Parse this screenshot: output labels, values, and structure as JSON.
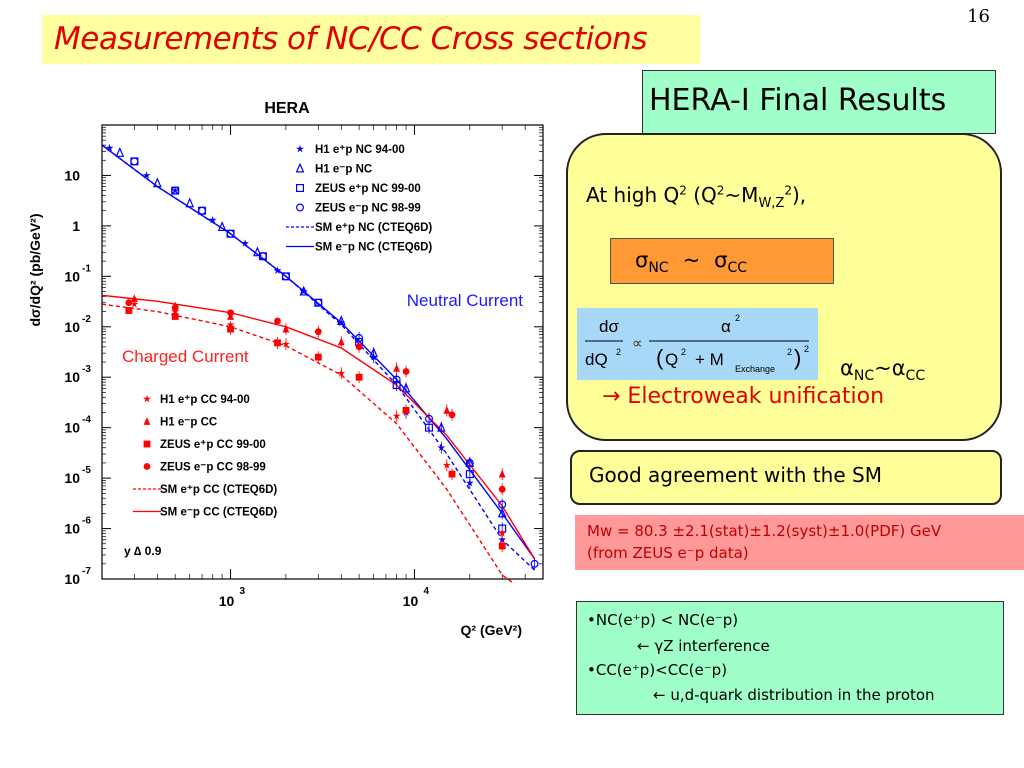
{
  "page_number": "16",
  "slide_title": "Measurements of NC/CC Cross sections",
  "hera_box": "HERA-I  Final Results",
  "highq": {
    "prefix": "At high Q",
    "sup1": "2",
    "mid": "  (Q",
    "sup2": "2",
    "tilde": "~M",
    "sub": "W,Z",
    "sup3": "2",
    "end": "),"
  },
  "sigma_eq": {
    "s1": "σ",
    "sub1": "NC",
    "tilde": "~",
    "s2": "σ",
    "sub2": "CC"
  },
  "formula": {
    "num_left": "dσ",
    "den_left": "dQ",
    "den_left_sup": "2",
    "prop": "∝",
    "num_right": "α",
    "num_right_sup": "2",
    "den_right_q": "Q",
    "den_right_q_sup": "2",
    "plus": "+ M",
    "m_sub": "Exchange",
    "m_sup": "2",
    "outer_sup": "2"
  },
  "alpha_eq": {
    "a1": "α",
    "sub1": "NC",
    "tilde": "~",
    "a2": "α",
    "sub2": "CC"
  },
  "electroweak": "→ Electroweak unification",
  "good_agreement": "Good agreement with the SM",
  "mw_line1": "Mw = 80.3 ±2.1(stat)±1.2(syst)±1.0(PDF) GeV",
  "mw_line2": "(from ZEUS e⁻p data)",
  "bullets": [
    "•NC(e⁺p) < NC(e⁻p)",
    "← γZ interference",
    "•CC(e⁺p)<CC(e⁻p)",
    "← u,d-quark distribution in the proton"
  ],
  "colors": {
    "nc": "#0000ff",
    "cc": "#ff0000",
    "title_red": "#e00000"
  },
  "chart_data": {
    "type": "scatter",
    "title": "HERA",
    "ylabel": "dσ/dQ² (pb/GeV²)",
    "xlabel": "Q² (GeV²)",
    "x_scale": "log",
    "y_scale": "log",
    "xlim": [
      200,
      50000
    ],
    "ylim": [
      1e-07,
      100
    ],
    "x_ticks": [
      {
        "label": "10",
        "sup": "3"
      },
      {
        "label": "10",
        "sup": "4"
      }
    ],
    "y_ticks": [
      {
        "label": "10",
        "sup": ""
      },
      {
        "label": "1",
        "sup": ""
      },
      {
        "label": "10",
        "sup": "-1"
      },
      {
        "label": "10",
        "sup": "-2"
      },
      {
        "label": "10",
        "sup": "-3"
      },
      {
        "label": "10",
        "sup": "-4"
      },
      {
        "label": "10",
        "sup": "-5"
      },
      {
        "label": "10",
        "sup": "-6"
      },
      {
        "label": "10",
        "sup": "-7"
      }
    ],
    "region_labels": {
      "nc": "Neutral Current",
      "cc": "Charged Current"
    },
    "y_cut": "y ∆ 0.9",
    "nc_legend": [
      {
        "label": "H1 e⁺p NC 94-00",
        "marker": "star"
      },
      {
        "label": "H1 e⁻p NC",
        "marker": "tri-open"
      },
      {
        "label": "ZEUS e⁺p NC 99-00",
        "marker": "square-open"
      },
      {
        "label": "ZEUS e⁻p NC 98-99",
        "marker": "circle-open"
      },
      {
        "label": "SM e⁺p NC (CTEQ6D)",
        "marker": "dash"
      },
      {
        "label": "SM e⁻p NC (CTEQ6D)",
        "marker": "solid"
      }
    ],
    "cc_legend": [
      {
        "label": "H1 e⁺p CC 94-00",
        "marker": "star"
      },
      {
        "label": "H1 e⁻p CC",
        "marker": "tri"
      },
      {
        "label": "ZEUS e⁺p CC 99-00",
        "marker": "square"
      },
      {
        "label": "ZEUS e⁻p CC 98-99",
        "marker": "circle"
      },
      {
        "label": "SM e⁺p CC (CTEQ6D)",
        "marker": "dash"
      },
      {
        "label": "SM e⁻p CC (CTEQ6D)",
        "marker": "solid"
      }
    ],
    "series": [
      {
        "name": "SM e⁻p NC (CTEQ6D)",
        "style": "solid",
        "color": "#0000ff",
        "points": [
          [
            200,
            40
          ],
          [
            400,
            6
          ],
          [
            1000,
            0.7
          ],
          [
            2000,
            0.1
          ],
          [
            4000,
            0.012
          ],
          [
            8000,
            0.0009
          ],
          [
            15000,
            6e-05
          ],
          [
            30000,
            2e-06
          ],
          [
            45000,
            2.5e-07
          ]
        ]
      },
      {
        "name": "SM e⁺p NC (CTEQ6D)",
        "style": "dash",
        "color": "#0000ff",
        "points": [
          [
            200,
            40
          ],
          [
            400,
            6
          ],
          [
            1000,
            0.7
          ],
          [
            2000,
            0.1
          ],
          [
            4000,
            0.011
          ],
          [
            8000,
            0.0007
          ],
          [
            15000,
            3e-05
          ],
          [
            30000,
            6e-07
          ],
          [
            45000,
            1.5e-07
          ]
        ]
      },
      {
        "name": "SM e⁻p CC (CTEQ6D)",
        "style": "solid",
        "color": "#ff0000",
        "points": [
          [
            200,
            0.042
          ],
          [
            400,
            0.032
          ],
          [
            1000,
            0.019
          ],
          [
            2000,
            0.01
          ],
          [
            4000,
            0.0038
          ],
          [
            8000,
            0.0007
          ],
          [
            15000,
            7e-05
          ],
          [
            30000,
            2.8e-06
          ],
          [
            45000,
            2.5e-07
          ]
        ]
      },
      {
        "name": "SM e⁺p CC (CTEQ6D)",
        "style": "dash",
        "color": "#ff0000",
        "points": [
          [
            200,
            0.028
          ],
          [
            400,
            0.02
          ],
          [
            1000,
            0.01
          ],
          [
            2000,
            0.0042
          ],
          [
            4000,
            0.0011
          ],
          [
            8000,
            0.00012
          ],
          [
            15000,
            6e-06
          ],
          [
            30000,
            1.2e-07
          ],
          [
            35000,
            8e-08
          ]
        ]
      },
      {
        "name": "ZEUS e⁻p NC 98-99",
        "marker": "circle-open",
        "color": "#0000ff",
        "points": [
          [
            300,
            19
          ],
          [
            500,
            5
          ],
          [
            700,
            2
          ],
          [
            1000,
            0.7
          ],
          [
            1500,
            0.25
          ],
          [
            2000,
            0.1
          ],
          [
            3000,
            0.03
          ],
          [
            5000,
            0.006
          ],
          [
            8000,
            0.0009
          ],
          [
            12000,
            0.00015
          ],
          [
            20000,
            2e-05
          ],
          [
            30000,
            3e-06
          ],
          [
            45000,
            2e-07
          ]
        ]
      },
      {
        "name": "ZEUS e⁺p NC 99-00",
        "marker": "square-open",
        "color": "#0000ff",
        "points": [
          [
            300,
            19
          ],
          [
            500,
            5
          ],
          [
            700,
            2
          ],
          [
            1000,
            0.7
          ],
          [
            1500,
            0.25
          ],
          [
            2000,
            0.1
          ],
          [
            3000,
            0.03
          ],
          [
            5000,
            0.005
          ],
          [
            8000,
            0.0007
          ],
          [
            12000,
            0.0001
          ],
          [
            20000,
            1.2e-05
          ],
          [
            30000,
            1e-06
          ]
        ]
      },
      {
        "name": "H1 e⁻p NC",
        "marker": "tri-open",
        "color": "#0000ff",
        "points": [
          [
            250,
            28
          ],
          [
            400,
            7
          ],
          [
            600,
            2.8
          ],
          [
            900,
            0.95
          ],
          [
            1400,
            0.3
          ],
          [
            2500,
            0.05
          ],
          [
            4000,
            0.013
          ],
          [
            6000,
            0.003
          ],
          [
            9000,
            0.0006
          ],
          [
            14000,
            0.0001
          ],
          [
            20000,
            2e-05
          ],
          [
            30000,
            2e-06
          ]
        ]
      },
      {
        "name": "H1 e⁺p NC 94-00",
        "marker": "star",
        "color": "#0000ff",
        "points": [
          [
            220,
            35
          ],
          [
            350,
            10
          ],
          [
            500,
            5
          ],
          [
            800,
            1.3
          ],
          [
            1200,
            0.45
          ],
          [
            1800,
            0.13
          ],
          [
            2500,
            0.05
          ],
          [
            4000,
            0.012
          ],
          [
            6000,
            0.0025
          ],
          [
            9000,
            0.0002
          ],
          [
            14000,
            4e-05
          ],
          [
            20000,
            8e-06
          ],
          [
            30000,
            6e-07
          ]
        ]
      },
      {
        "name": "ZEUS e⁻p CC 98-99",
        "marker": "circle",
        "color": "#ff0000",
        "points": [
          [
            280,
            0.03
          ],
          [
            500,
            0.024
          ],
          [
            1000,
            0.019
          ],
          [
            1800,
            0.013
          ],
          [
            3000,
            0.008
          ],
          [
            5000,
            0.004
          ],
          [
            9000,
            0.0013
          ],
          [
            16000,
            0.00018
          ],
          [
            30000,
            6e-06
          ]
        ]
      },
      {
        "name": "ZEUS e⁺p CC 99-00",
        "marker": "square",
        "color": "#ff0000",
        "points": [
          [
            280,
            0.021
          ],
          [
            500,
            0.016
          ],
          [
            1000,
            0.009
          ],
          [
            1800,
            0.0048
          ],
          [
            3000,
            0.0025
          ],
          [
            5000,
            0.001
          ],
          [
            9000,
            0.00022
          ],
          [
            16000,
            1.2e-05
          ],
          [
            30000,
            4.5e-07
          ]
        ]
      },
      {
        "name": "H1 e⁻p CC",
        "marker": "tri",
        "color": "#ff0000",
        "points": [
          [
            300,
            0.036
          ],
          [
            500,
            0.026
          ],
          [
            1000,
            0.016
          ],
          [
            2000,
            0.009
          ],
          [
            4000,
            0.005
          ],
          [
            8000,
            0.0015
          ],
          [
            15000,
            0.00022
          ],
          [
            30000,
            1.2e-05
          ]
        ]
      },
      {
        "name": "H1 e⁺p CC 94-00",
        "marker": "star",
        "color": "#ff0000",
        "points": [
          [
            300,
            0.028
          ],
          [
            500,
            0.02
          ],
          [
            1000,
            0.011
          ],
          [
            2000,
            0.0045
          ],
          [
            4000,
            0.0012
          ],
          [
            8000,
            0.00017
          ],
          [
            15000,
            1.8e-05
          ],
          [
            30000,
            8e-07
          ]
        ]
      }
    ]
  }
}
